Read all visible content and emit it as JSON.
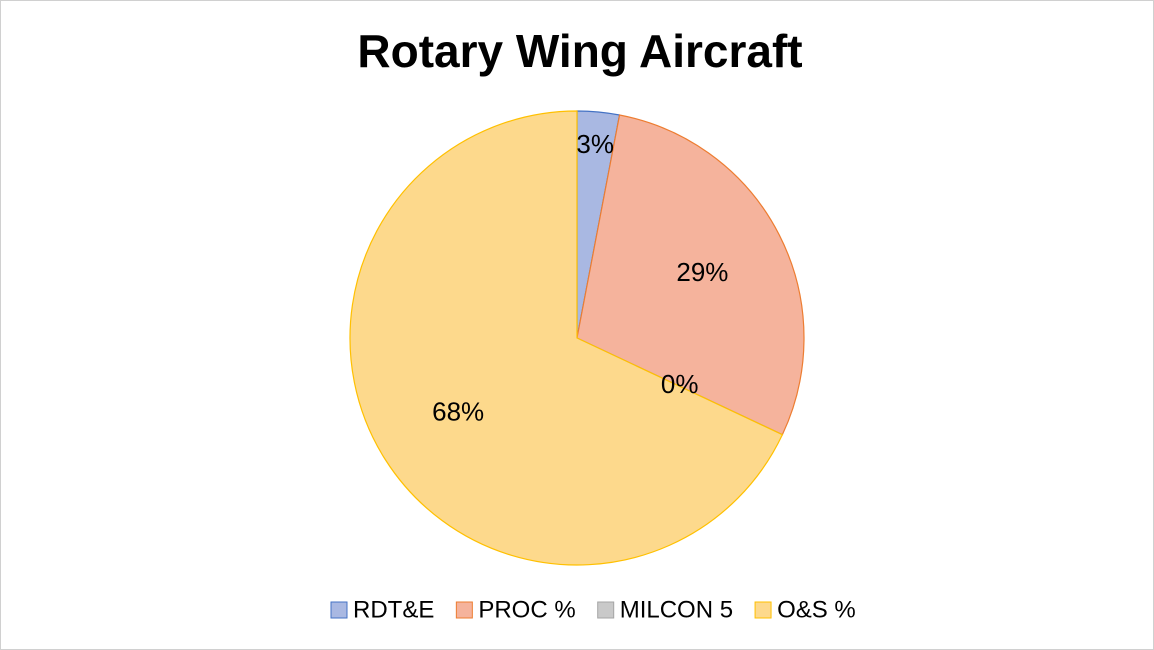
{
  "chart_data": {
    "type": "pie",
    "title": "Rotary Wing Aircraft",
    "categories": [
      "RDT&E",
      "PROC %",
      "MILCON 5",
      "O&S %"
    ],
    "values": [
      3,
      29,
      0,
      68
    ],
    "value_labels": [
      "3%",
      "29%",
      "0%",
      "68%"
    ],
    "colors": [
      "#a9b8e2",
      "#f5b39c",
      "#c9c9c9",
      "#fdd98c"
    ],
    "edge_colors": [
      "#4472c4",
      "#ed7d31",
      "#a5a5a5",
      "#ffc000"
    ],
    "legend": "bottom"
  }
}
